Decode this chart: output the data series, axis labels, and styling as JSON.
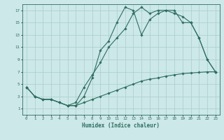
{
  "xlabel": "Humidex (Indice chaleur)",
  "xlim": [
    -0.5,
    23.5
  ],
  "ylim": [
    0,
    18
  ],
  "xticks": [
    0,
    1,
    2,
    3,
    4,
    5,
    6,
    7,
    8,
    9,
    10,
    11,
    12,
    13,
    14,
    15,
    16,
    17,
    18,
    19,
    20,
    21,
    22,
    23
  ],
  "yticks": [
    1,
    3,
    5,
    7,
    9,
    11,
    13,
    15,
    17
  ],
  "bg_color": "#cce8e8",
  "grid_color": "#aacccc",
  "line_color": "#2e6e60",
  "line1_x": [
    0,
    1,
    2,
    3,
    4,
    5,
    6,
    7,
    8,
    9,
    10,
    11,
    12,
    13,
    14,
    15,
    16,
    17,
    18,
    19,
    20,
    21,
    22,
    23
  ],
  "line1_y": [
    4.5,
    3.0,
    2.5,
    2.5,
    2.0,
    1.5,
    1.5,
    3.0,
    6.0,
    10.5,
    12.0,
    15.0,
    17.5,
    17.0,
    13.0,
    15.5,
    16.5,
    17.0,
    17.0,
    15.0,
    15.0,
    12.5,
    9.0,
    7.0
  ],
  "line2_x": [
    0,
    1,
    2,
    3,
    4,
    5,
    6,
    7,
    8,
    9,
    10,
    11,
    12,
    13,
    14,
    15,
    16,
    17,
    18,
    19,
    20,
    21,
    22,
    23
  ],
  "line2_y": [
    4.5,
    3.0,
    2.5,
    2.5,
    2.0,
    1.5,
    2.0,
    4.5,
    6.5,
    8.5,
    11.0,
    12.5,
    14.0,
    16.5,
    17.5,
    16.5,
    17.0,
    17.0,
    16.5,
    16.0,
    15.0,
    12.5,
    9.0,
    7.0
  ],
  "line3_x": [
    0,
    1,
    2,
    3,
    4,
    5,
    6,
    7,
    8,
    9,
    10,
    11,
    12,
    13,
    14,
    15,
    16,
    17,
    18,
    19,
    20,
    21,
    22,
    23
  ],
  "line3_y": [
    4.5,
    3.0,
    2.5,
    2.5,
    2.0,
    1.5,
    1.5,
    2.0,
    2.5,
    3.0,
    3.5,
    4.0,
    4.5,
    5.0,
    5.5,
    5.8,
    6.0,
    6.3,
    6.5,
    6.7,
    6.8,
    6.9,
    7.0,
    7.0
  ]
}
